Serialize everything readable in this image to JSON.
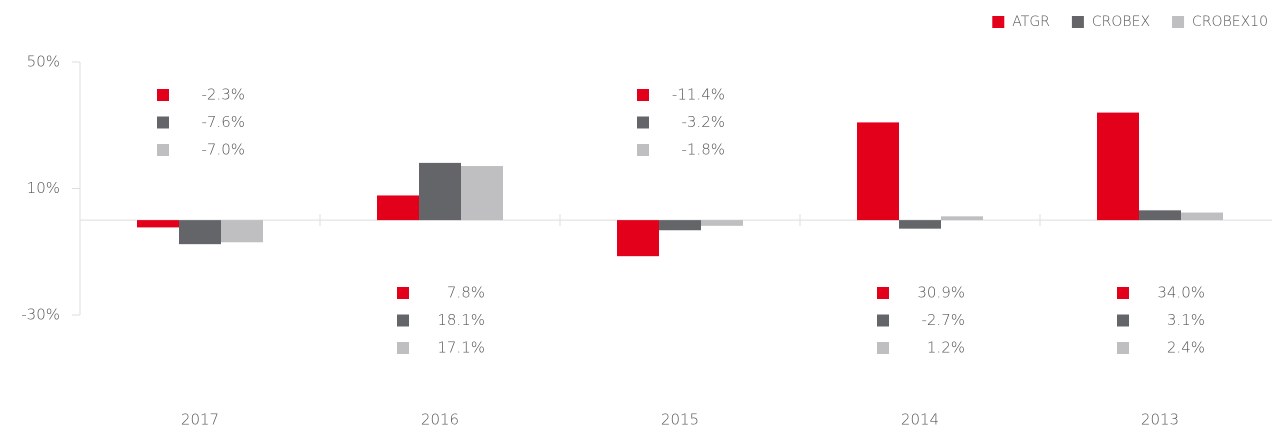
{
  "chart_data": {
    "type": "bar",
    "categories": [
      "2017",
      "2016",
      "2015",
      "2014",
      "2013"
    ],
    "series": [
      {
        "name": "ATGR",
        "color": "#e2001a",
        "values": [
          -2.3,
          7.8,
          -11.4,
          30.9,
          34.0
        ],
        "value_labels": [
          "-2.3%",
          "7.8%",
          "-11.4%",
          "30.9%",
          "34.0%"
        ]
      },
      {
        "name": "CROBEX",
        "color": "#636569",
        "values": [
          -7.6,
          18.1,
          -3.2,
          -2.7,
          3.1
        ],
        "value_labels": [
          "-7.6%",
          "18.1%",
          "-3.2%",
          "-2.7%",
          "3.1%"
        ]
      },
      {
        "name": "CROBEX10",
        "color": "#bfbec1",
        "values": [
          -7.0,
          17.1,
          -1.8,
          1.2,
          2.4
        ],
        "value_labels": [
          "-7.0%",
          "17.1%",
          "-1.8%",
          "1.2%",
          "2.4%"
        ]
      }
    ],
    "ylim": [
      -30,
      50
    ],
    "yticks": [
      {
        "value": 50,
        "label": "50%"
      },
      {
        "value": 10,
        "label": "10%"
      },
      {
        "value": -30,
        "label": "-30%"
      }
    ],
    "legend": "top-right"
  }
}
